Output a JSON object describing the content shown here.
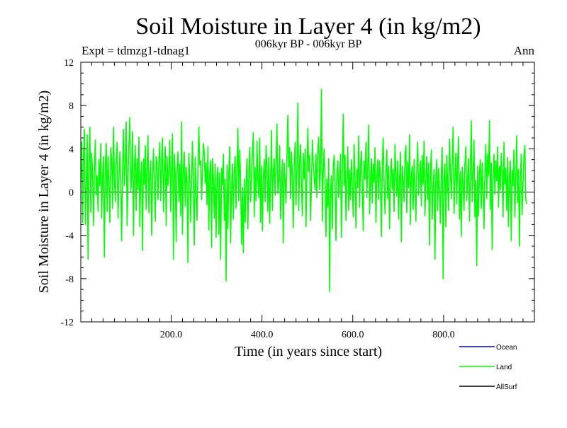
{
  "chart_data": {
    "type": "line",
    "title": "Soil Moisture in Layer 4 (in kg/m2)",
    "subtitle": "006kyr BP - 006kyr BP",
    "experiment_label": "Expt = tdmzg1-tdnag1",
    "season_label": "Ann",
    "xlabel": "Time (in years since start)",
    "ylabel": "Soil Moisture in Layer 4 (in kg/m2)",
    "xlim": [
      1,
      1000
    ],
    "ylim": [
      -12,
      12
    ],
    "x_ticks": [
      200,
      400,
      600,
      800
    ],
    "x_tick_labels": [
      "200.0",
      "400.0",
      "600.0",
      "800.0"
    ],
    "y_ticks": [
      -12,
      -8,
      -4,
      0,
      4,
      8,
      12
    ],
    "y_tick_labels": [
      "-12",
      "-8",
      "-4",
      "0",
      "4",
      "8",
      "12"
    ],
    "zero_line": 0,
    "series": [
      {
        "name": "Ocean",
        "color": "#0000cc",
        "values": []
      },
      {
        "name": "Land",
        "color": "#00ff00",
        "x_start": 1,
        "x_step": 2,
        "values": [
          1.2,
          4.6,
          -2.8,
          3.5,
          5.8,
          -3.0,
          0.8,
          5.3,
          -6.2,
          2.7,
          6.0,
          -1.9,
          3.6,
          1.5,
          -3.1,
          2.1,
          4.8,
          -0.3,
          1.5,
          -1.8,
          3.0,
          0.6,
          4.5,
          -2.4,
          1.5,
          3.3,
          -6.0,
          2.6,
          4.5,
          -1.8,
          3.3,
          0.8,
          -2.8,
          4.1,
          2.9,
          -1.5,
          6.0,
          1.3,
          -0.9,
          3.0,
          4.6,
          -2.4,
          1.3,
          3.7,
          0.8,
          -4.5,
          2.2,
          5.8,
          0.6,
          2.6,
          6.5,
          -3.1,
          1.5,
          4.3,
          6.9,
          0.1,
          1.5,
          5.6,
          -4.0,
          2.3,
          4.3,
          -1.7,
          3.1,
          0.2,
          5.1,
          -3.2,
          1.4,
          2.8,
          -5.4,
          3.1,
          0.7,
          4.3,
          -1.6,
          2.1,
          5.2,
          -1.9,
          1.6,
          2.9,
          -4.0,
          1.2,
          4.0,
          0.8,
          -2.7,
          3.3,
          2.7,
          -0.7,
          3.0,
          4.6,
          -0.8,
          2.7,
          5.0,
          -1.8,
          2.2,
          4.2,
          -3.1,
          3.3,
          0.6,
          2.0,
          4.8,
          -1.8,
          2.0,
          5.4,
          -6.2,
          3.5,
          1.7,
          -4.6,
          2.1,
          3.7,
          -0.9,
          2.6,
          -2.2,
          6.5,
          -3.9,
          2.1,
          3.7,
          -1.3,
          2.3,
          0.8,
          -6.5,
          3.6,
          1.5,
          -2.8,
          1.2,
          4.7,
          0.4,
          -4.9,
          3.2,
          0.1,
          -2.6,
          1.8,
          6.0,
          2.5,
          2.9,
          -0.7,
          2.2,
          4.5,
          3.6,
          0.8,
          2.7,
          -1.2,
          4.2,
          -3.5,
          1.8,
          2.9,
          -5.1,
          3.1,
          1.4,
          -2.4,
          2.6,
          -4.2,
          1.4,
          2.3,
          -3.9,
          1.8,
          -6.2,
          2.2,
          0.7,
          3.5,
          -2.6,
          1.2,
          -8.2,
          2.5,
          -3.4,
          1.8,
          4.2,
          -4.7,
          0.3,
          2.6,
          -2.5,
          1.9,
          3.3,
          -1.5,
          1.9,
          5.9,
          -0.8,
          3.9,
          1.2,
          -4.8,
          0.4,
          -5.6,
          1.2,
          -2.8,
          0.7,
          3.1,
          -3.4,
          1.6,
          4.1,
          -0.9,
          1.3,
          3.7,
          5.5,
          -2.3,
          2.3,
          -0.8,
          4.7,
          1.1,
          -0.5,
          5.0,
          -2.8,
          2.4,
          -3.6,
          1.2,
          3.0,
          -0.9,
          4.3,
          2.1,
          -1.8,
          3.2,
          -2.9,
          1.3,
          5.7,
          -1.7,
          1.9,
          3.1,
          -0.3,
          2.6,
          6.3,
          -0.1,
          1.0,
          4.3,
          -2.5,
          0.5,
          3.0,
          -4.7,
          2.7,
          1.2,
          -1.0,
          3.4,
          7.1,
          2.3,
          4.1,
          -0.6,
          3.7,
          1.3,
          -3.3,
          2.5,
          4.6,
          -1.2,
          2.2,
          8.2,
          -1.7,
          3.0,
          4.4,
          0.6,
          -2.2,
          3.6,
          1.2,
          4.0,
          -3.2,
          1.7,
          5.9,
          1.9,
          3.4,
          -2.6,
          0.6,
          4.8,
          2.7,
          1.3,
          0.2,
          3.5,
          -0.5,
          3.8,
          5.1,
          0.2,
          2.3,
          9.5,
          -2.7,
          2.0,
          4.0,
          0.6,
          -4.1,
          1.2,
          -1.4,
          3.1,
          -9.2,
          0.2,
          1.5,
          -3.4,
          2.5,
          3.4,
          0.6,
          -4.5,
          1.5,
          2.9,
          -0.5,
          1.2,
          3.5,
          -4.2,
          1.6,
          7.2,
          0.6,
          3.4,
          -2.6,
          0.9,
          4.2,
          -1.7,
          2.1,
          -0.7,
          3.0,
          0.6,
          -2.3,
          4.4,
          1.3,
          -3.3,
          2.1,
          0.4,
          5.2,
          -1.4,
          2.4,
          3.8,
          0.5,
          -3.6,
          2.9,
          1.2,
          4.6,
          -0.5,
          2.3,
          6.2,
          -2.0,
          1.0,
          3.1,
          -1.0,
          2.6,
          0.9,
          4.1,
          -2.8,
          1.4,
          3.0,
          -0.7,
          2.9,
          1.3,
          -4.1,
          2.4,
          5.0,
          0.9,
          -2.0,
          1.6,
          3.9,
          -0.6,
          2.4,
          -3.4,
          1.3,
          3.1,
          0.2,
          2.1,
          -1.8,
          4.4,
          1.6,
          -0.4,
          2.9,
          -2.5,
          1.2,
          3.7,
          -4.6,
          2.4,
          1.1,
          -0.9,
          3.5,
          4.3,
          -1.9,
          2.8,
          0.4,
          5.3,
          -3.0,
          1.6,
          2.4,
          -1.6,
          3.0,
          0.6,
          -2.7,
          2.1,
          4.6,
          -0.3,
          1.5,
          2.9,
          -1.3,
          3.4,
          0.7,
          4.7,
          -2.2,
          1.2,
          3.3,
          -0.7,
          2.7,
          -4.9,
          1.7,
          3.9,
          -2.5,
          0.6,
          2.1,
          -6.2,
          1.4,
          3.0,
          -1.7,
          2.2,
          0.4,
          -2.9,
          1.8,
          4.1,
          -8.0,
          1.3,
          2.6,
          -3.2,
          3.4,
          0.6,
          -1.7,
          4.9,
          1.8,
          -0.6,
          2.5,
          6.0,
          -2.0,
          1.3,
          3.6,
          -1.1,
          2.8,
          5.1,
          -2.5,
          1.9,
          -4.1,
          2.3,
          0.9,
          -1.7,
          2.6,
          4.2,
          -0.8,
          1.3,
          3.1,
          -2.7,
          2.0,
          6.6,
          -0.9,
          1.8,
          4.8,
          -2.3,
          1.1,
          -6.8,
          2.4,
          -2.2,
          1.8,
          3.0,
          -1.5,
          2.7,
          0.3,
          -3.4,
          2.1,
          4.4,
          -0.6,
          3.5,
          1.5,
          6.6,
          -1.6,
          2.7,
          -5.3,
          1.4,
          3.5,
          -0.2,
          2.9,
          1.0,
          4.2,
          -1.4,
          2.4,
          0.2,
          3.6,
          1.6,
          -2.3,
          4.6,
          0.7,
          2.2,
          -1.7,
          3.2,
          -3.2,
          1.4,
          2.9,
          -4.5,
          2.0,
          0.6,
          3.9,
          -2.3,
          1.3,
          5.2,
          -1.0,
          2.1,
          -5.0,
          1.5,
          3.5,
          -2.1,
          0.8,
          3.3,
          4.3,
          -0.6,
          -1.1
        ]
      },
      {
        "name": "AllSurf",
        "color": "#000000",
        "values": []
      }
    ],
    "legend": {
      "position": "bottom-right",
      "entries": [
        {
          "label": "Ocean",
          "color": "#0000cc"
        },
        {
          "label": "Land",
          "color": "#00ff00"
        },
        {
          "label": "AllSurf",
          "color": "#000000"
        }
      ]
    }
  }
}
